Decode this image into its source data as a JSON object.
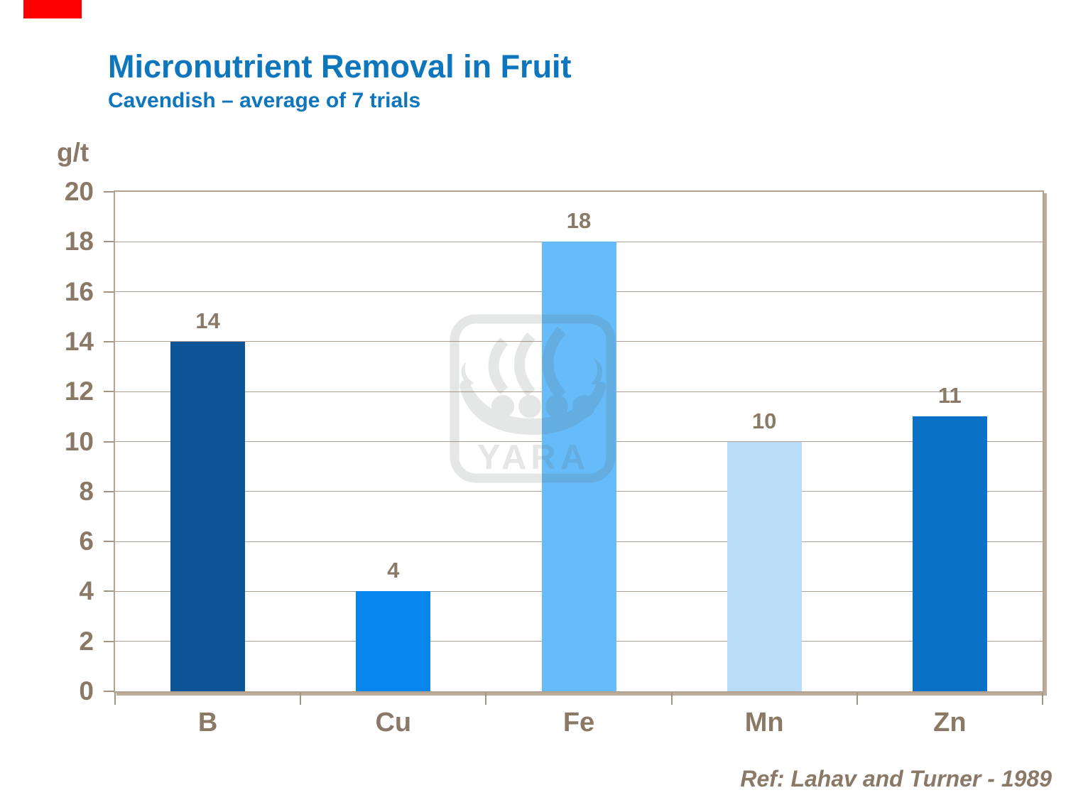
{
  "slide": {
    "accent_mark_color": "#FF0000",
    "reference": "Ref: Lahav and Turner - 1989",
    "watermark_name": "YARA"
  },
  "chart_data": {
    "type": "bar",
    "title": "Micronutrient Removal in Fruit",
    "subtitle": "Cavendish – average of 7 trials",
    "ylabel": "g/t",
    "xlabel": "",
    "categories": [
      "B",
      "Cu",
      "Fe",
      "Mn",
      "Zn"
    ],
    "values": [
      14,
      4,
      18,
      10,
      11
    ],
    "ylim": [
      0,
      20
    ],
    "ytick_step": 2,
    "grid": true,
    "legend": false,
    "annotations": [
      "Ref: Lahav and Turner - 1989"
    ],
    "colors": {
      "title": "#0E76BD",
      "axis_text": "#8A7967",
      "frame": "#B2A191",
      "gridline": "#ADA092",
      "tick": "#A3937F",
      "bars": [
        "#0D5496",
        "#0986EC",
        "#66BCF9",
        "#B9DCF8",
        "#0A72C6"
      ],
      "watermark_gray": "#E8E8E8"
    }
  }
}
